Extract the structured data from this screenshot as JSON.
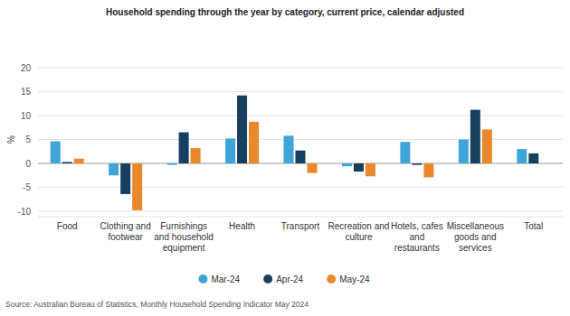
{
  "chart_data": {
    "type": "bar",
    "title": "Household spending through the year by category, current price, calendar adjusted",
    "ylabel": "%",
    "source": "Source: Australian Bureau of Statistics, Monthly Household Spending Indicator May 2024",
    "categories": [
      "Food",
      "Clothing and footwear",
      "Furnishings and household equipment",
      "Health",
      "Transport",
      "Recreation and culture",
      "Hotels, cafes and restaurants",
      "Miscellaneous goods and services",
      "Total"
    ],
    "series": [
      {
        "name": "Mar-24",
        "color": "#3fa5d9",
        "values": [
          4.6,
          -2.5,
          -0.3,
          5.2,
          5.8,
          -0.6,
          4.5,
          5.0,
          3.0
        ]
      },
      {
        "name": "Apr-24",
        "color": "#173f5f",
        "values": [
          0.3,
          -6.4,
          6.5,
          14.2,
          2.7,
          -1.7,
          -0.3,
          11.2,
          2.1
        ]
      },
      {
        "name": "May-24",
        "color": "#e9892b",
        "values": [
          1.0,
          -9.8,
          3.2,
          8.7,
          -2.0,
          -2.7,
          -2.9,
          7.1,
          0.0
        ]
      }
    ],
    "ylim": [
      -10,
      20
    ],
    "yticks": [
      -10,
      -5,
      0,
      5,
      10,
      15,
      20
    ],
    "grid": true,
    "legend": "bottom"
  }
}
